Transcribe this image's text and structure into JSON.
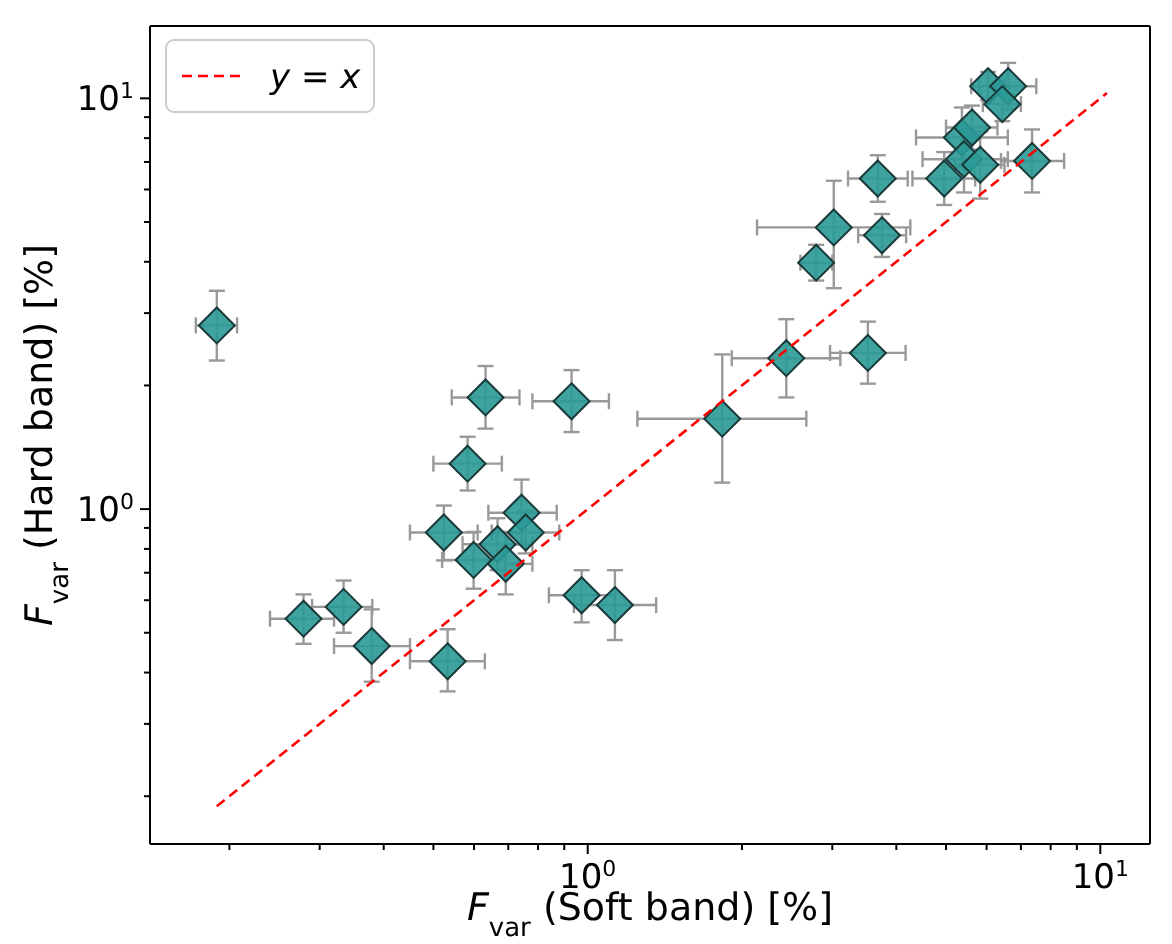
{
  "chart_data": {
    "type": "scatter",
    "xlabel": "F$_{var}$ (Soft band) [%]",
    "ylabel": "F$_{var}$ (Hard band) [%]",
    "log": "xy",
    "legend": "top left",
    "marker": "diamond",
    "xlim": [
      0.14,
      12.5
    ],
    "ylim": [
      0.153,
      15
    ],
    "xticks": [
      {
        "value": 0.2,
        "label": null
      },
      {
        "value": 0.3,
        "label": null
      },
      {
        "value": 0.4,
        "label": null
      },
      {
        "value": 0.5,
        "label": null
      },
      {
        "value": 0.6,
        "label": null
      },
      {
        "value": 0.7,
        "label": null
      },
      {
        "value": 0.8,
        "label": null
      },
      {
        "value": 0.9,
        "label": null
      },
      {
        "value": 1,
        "label": "10$^{0}$"
      },
      {
        "value": 2,
        "label": null
      },
      {
        "value": 3,
        "label": null
      },
      {
        "value": 4,
        "label": null
      },
      {
        "value": 5,
        "label": null
      },
      {
        "value": 6,
        "label": null
      },
      {
        "value": 7,
        "label": null
      },
      {
        "value": 8,
        "label": null
      },
      {
        "value": 9,
        "label": null
      },
      {
        "value": 10,
        "label": "10$^{1}$"
      }
    ],
    "yticks": [
      {
        "value": 0.2,
        "label": null
      },
      {
        "value": 0.3,
        "label": null
      },
      {
        "value": 0.4,
        "label": null
      },
      {
        "value": 0.5,
        "label": null
      },
      {
        "value": 0.6,
        "label": null
      },
      {
        "value": 0.7,
        "label": null
      },
      {
        "value": 0.8,
        "label": null
      },
      {
        "value": 0.9,
        "label": null
      },
      {
        "value": 1,
        "label": "10$^{0}$"
      },
      {
        "value": 2,
        "label": null
      },
      {
        "value": 3,
        "label": null
      },
      {
        "value": 4,
        "label": null
      },
      {
        "value": 5,
        "label": null
      },
      {
        "value": 6,
        "label": null
      },
      {
        "value": 7,
        "label": null
      },
      {
        "value": 8,
        "label": null
      },
      {
        "value": 9,
        "label": null
      },
      {
        "value": 10,
        "label": "10$^{1}$"
      }
    ],
    "series": [
      {
        "color": "#2a9a96",
        "x": [
          0.189,
          0.632,
          0.93,
          0.583,
          1.83,
          2.44,
          3.52,
          2.79,
          3.02,
          3.75,
          3.68,
          4.96,
          5.37,
          5.62,
          5.42,
          5.83,
          6.04,
          6.61,
          6.44,
          7.36,
          0.524,
          0.743,
          0.757,
          0.667,
          0.599,
          0.692,
          0.973,
          1.13,
          0.334,
          0.279,
          0.379,
          0.533
        ],
        "values": [
          2.8,
          1.87,
          1.83,
          1.29,
          1.66,
          2.33,
          2.4,
          3.98,
          4.85,
          4.64,
          6.38,
          6.38,
          8.03,
          8.49,
          7.11,
          6.89,
          10.7,
          10.7,
          9.68,
          7.04,
          0.877,
          0.98,
          0.877,
          0.821,
          0.752,
          0.736,
          0.617,
          0.584,
          0.578,
          0.541,
          0.464,
          0.426
        ],
        "xerrors": [
          [
            0.172,
            0.207
          ],
          [
            0.543,
            0.736
          ],
          [
            0.78,
            1.1
          ],
          [
            0.5,
            0.68
          ],
          [
            1.25,
            2.67
          ],
          [
            1.91,
            3.11
          ],
          [
            2.97,
            4.17
          ],
          [
            2.6,
            3.0
          ],
          [
            2.14,
            4.26
          ],
          [
            3.37,
            4.18
          ],
          [
            3.22,
            4.21
          ],
          [
            4.3,
            5.7
          ],
          [
            4.37,
            6.6
          ],
          [
            5.0,
            6.3
          ],
          [
            4.5,
            6.6
          ],
          [
            5.2,
            6.5
          ],
          [
            5.6,
            6.5
          ],
          [
            5.8,
            7.5
          ],
          [
            5.9,
            7.0
          ],
          [
            6.4,
            8.5
          ],
          [
            0.45,
            0.61
          ],
          [
            0.64,
            0.87
          ],
          [
            0.65,
            0.88
          ],
          [
            0.57,
            0.78
          ],
          [
            0.52,
            0.69
          ],
          [
            0.692,
            0.78
          ],
          [
            0.84,
            1.13
          ],
          [
            0.94,
            1.36
          ],
          [
            0.29,
            0.38
          ],
          [
            0.24,
            0.32
          ],
          [
            0.32,
            0.45
          ],
          [
            0.45,
            0.63
          ]
        ],
        "errors": [
          [
            2.3,
            3.4
          ],
          [
            1.57,
            2.23
          ],
          [
            1.54,
            2.18
          ],
          [
            1.11,
            1.5
          ],
          [
            1.16,
            2.38
          ],
          [
            1.87,
            2.9
          ],
          [
            2.02,
            2.86
          ],
          [
            3.6,
            4.4
          ],
          [
            3.45,
            6.3
          ],
          [
            4.11,
            5.23
          ],
          [
            5.6,
            7.27
          ],
          [
            5.5,
            7.4
          ],
          [
            6.8,
            9.5
          ],
          [
            7.5,
            9.6
          ],
          [
            5.9,
            8.5
          ],
          [
            5.7,
            8.3
          ],
          [
            9.9,
            11.6
          ],
          [
            9.4,
            12.2
          ],
          [
            8.8,
            10.6
          ],
          [
            5.9,
            8.4
          ],
          [
            0.75,
            1.02
          ],
          [
            0.82,
            1.18
          ],
          [
            0.78,
            0.99
          ],
          [
            0.71,
            0.95
          ],
          [
            0.64,
            0.88
          ],
          [
            0.62,
            0.88
          ],
          [
            0.53,
            0.71
          ],
          [
            0.48,
            0.71
          ],
          [
            0.5,
            0.67
          ],
          [
            0.47,
            0.62
          ],
          [
            0.38,
            0.57
          ],
          [
            0.36,
            0.51
          ]
        ]
      },
      {
        "type": "line",
        "name": "y = x",
        "color": "#ff0000",
        "line_style": "dashed",
        "marker": "none",
        "x": [
          0.189,
          10.3
        ],
        "values": [
          0.189,
          10.3
        ]
      }
    ]
  }
}
